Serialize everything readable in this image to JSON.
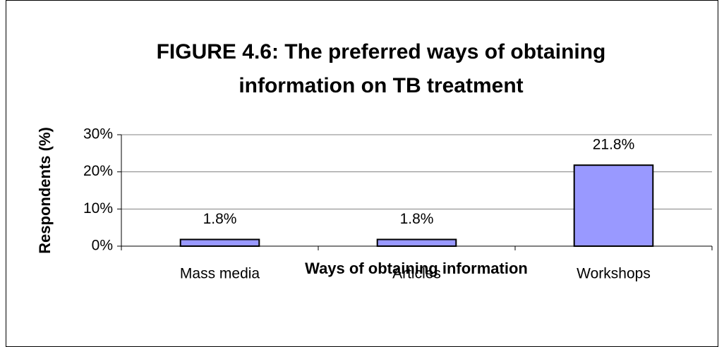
{
  "chart_data": {
    "type": "bar",
    "title": [
      "FIGURE 4.6: The preferred ways of obtaining",
      "information on TB treatment"
    ],
    "xlabel": "Ways of obtaining information",
    "ylabel": "Respondents (%)",
    "categories": [
      "Mass media",
      "Articles",
      "Workshops"
    ],
    "values": [
      1.8,
      1.8,
      21.8
    ],
    "value_labels": [
      "1.8%",
      "1.8%",
      "21.8%"
    ],
    "color": "#9999ff",
    "ylim": [
      0,
      30
    ],
    "yticks": [
      {
        "value": 0,
        "label": "0%"
      },
      {
        "value": 10,
        "label": "10%"
      },
      {
        "value": 20,
        "label": "20%"
      },
      {
        "value": 30,
        "label": "30%"
      }
    ],
    "grid": true
  }
}
